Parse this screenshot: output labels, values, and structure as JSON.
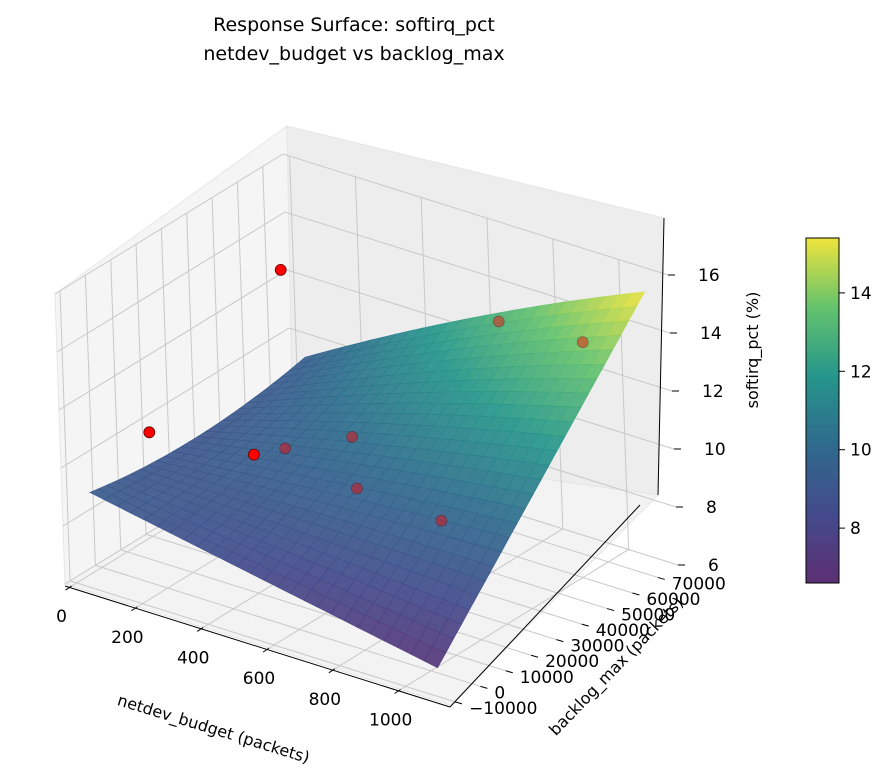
{
  "chart_data": {
    "type": "surface3d",
    "title": "Response Surface: softirq_pct",
    "subtitle": "netdev_budget vs backlog_max",
    "xlabel": "netdev_budget (packets)",
    "ylabel": "backlog_max (packets)",
    "zlabel": "softirq_pct (%)",
    "x_ticks": [
      "0",
      "200",
      "400",
      "600",
      "800",
      "1000"
    ],
    "y_ticks": [
      "−10000",
      "0",
      "10000",
      "20000",
      "30000",
      "40000",
      "50000",
      "60000",
      "70000"
    ],
    "z_ticks": [
      "6",
      "8",
      "10",
      "12",
      "14",
      "16"
    ],
    "xlim": [
      -20,
      1150
    ],
    "ylim": [
      -12000,
      78000
    ],
    "zlim": [
      6,
      16
    ],
    "surface_corners": [
      {
        "x": 50,
        "y": -10000,
        "z": 9.3
      },
      {
        "x": 1100,
        "y": -10000,
        "z": 7.0
      },
      {
        "x": 1100,
        "y": 75000,
        "z": 15.4
      },
      {
        "x": 50,
        "y": 75000,
        "z": 9.4
      }
    ],
    "surface_range": [
      6.6,
      15.4
    ],
    "colormap": "viridis",
    "observed_points": [
      {
        "x": 64,
        "y": 65000,
        "z": 13.0
      },
      {
        "x": 128,
        "y": 4000,
        "z": 10.9
      },
      {
        "x": 256,
        "y": 28000,
        "z": 9.3
      },
      {
        "x": 512,
        "y": 34000,
        "z": 10.5
      },
      {
        "x": 512,
        "y": 8000,
        "z": 11.5
      },
      {
        "x": 768,
        "y": 60000,
        "z": 14.0
      },
      {
        "x": 768,
        "y": 3000,
        "z": 11.3
      },
      {
        "x": 1024,
        "y": 60000,
        "z": 14.2
      },
      {
        "x": 1024,
        "y": 3000,
        "z": 11.1
      }
    ],
    "point_color": "#ff0000",
    "colorbar_ticks": [
      "8",
      "10",
      "12",
      "14"
    ],
    "colorbar_range": [
      6.6,
      15.4
    ]
  }
}
